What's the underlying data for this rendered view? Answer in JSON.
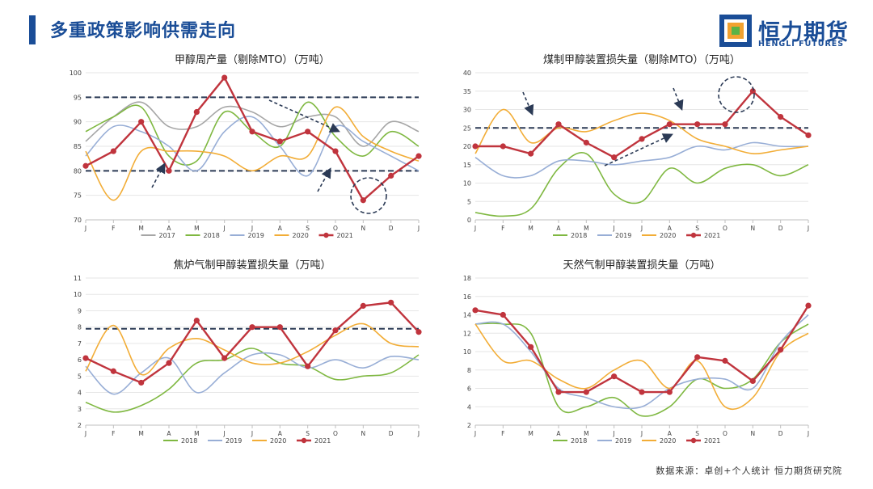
{
  "header": {
    "title": "多重政策影响供需走向"
  },
  "logo": {
    "name_cn": "恒力期货",
    "name_en": "HENGLI FUTURES"
  },
  "source": "数据来源：卓创+个人统计  恒力期货研究院",
  "colors": {
    "2017": "#a6a6a6",
    "2018": "#7fb841",
    "2019": "#98aed6",
    "2020": "#f2ad37",
    "2021": "#c0343d",
    "accent": "#1a4d97"
  },
  "chart_data": [
    {
      "type": "line",
      "title": "甲醇周产量（剔除MTO）（万吨）",
      "categories": [
        "J",
        "F",
        "M",
        "A",
        "M",
        "J",
        "J",
        "A",
        "S",
        "O",
        "N",
        "D",
        "J"
      ],
      "ylim": [
        70,
        100
      ],
      "yticks": [
        70,
        75,
        80,
        85,
        90,
        95,
        100
      ],
      "reference_lines": [
        95,
        80
      ],
      "series": [
        {
          "name": "2017",
          "values": [
            86,
            91,
            94,
            89,
            89,
            93,
            92,
            89,
            91,
            91,
            85,
            90,
            88
          ]
        },
        {
          "name": "2018",
          "values": [
            88,
            91,
            93,
            83,
            82,
            92,
            88,
            85,
            94,
            87,
            83,
            88,
            85
          ]
        },
        {
          "name": "2019",
          "values": [
            83,
            89,
            88,
            85,
            80,
            88,
            91,
            85,
            79,
            89,
            86,
            83,
            80
          ]
        },
        {
          "name": "2020",
          "values": [
            84,
            74,
            84,
            84,
            84,
            83,
            80,
            83,
            83,
            93,
            87,
            84,
            82
          ]
        },
        {
          "name": "2021",
          "values": [
            81,
            84,
            90,
            80,
            92,
            99,
            88,
            86,
            88,
            84,
            74,
            79,
            83
          ]
        }
      ]
    },
    {
      "type": "line",
      "title": "煤制甲醇装置损失量（剔除MTO）（万吨）",
      "categories": [
        "J",
        "F",
        "M",
        "A",
        "M",
        "J",
        "J",
        "A",
        "S",
        "O",
        "N",
        "D",
        "J"
      ],
      "ylim": [
        0,
        40
      ],
      "yticks": [
        0,
        5,
        10,
        15,
        20,
        25,
        30,
        35,
        40
      ],
      "reference_lines": [
        25
      ],
      "series": [
        {
          "name": "2018",
          "values": [
            2,
            1,
            3,
            14,
            18,
            7,
            5,
            14,
            10,
            14,
            15,
            12,
            15
          ]
        },
        {
          "name": "2019",
          "values": [
            17,
            12,
            12,
            16,
            16,
            15,
            16,
            17,
            20,
            19,
            21,
            20,
            20
          ]
        },
        {
          "name": "2020",
          "values": [
            18,
            30,
            21,
            25,
            24,
            27,
            29,
            27,
            22,
            20,
            18,
            19,
            20
          ]
        },
        {
          "name": "2021",
          "values": [
            20,
            20,
            18,
            26,
            21,
            17,
            22,
            26,
            26,
            26,
            35,
            28,
            23
          ]
        }
      ]
    },
    {
      "type": "line",
      "title": "焦炉气制甲醇装置损失量（万吨）",
      "categories": [
        "J",
        "F",
        "M",
        "A",
        "M",
        "J",
        "J",
        "A",
        "S",
        "O",
        "N",
        "D",
        "J"
      ],
      "ylim": [
        2,
        11
      ],
      "yticks": [
        2,
        3,
        4,
        5,
        6,
        7,
        8,
        9,
        10,
        11
      ],
      "reference_lines": [
        7.9
      ],
      "series": [
        {
          "name": "2018",
          "values": [
            3.4,
            2.8,
            3.2,
            4.2,
            5.8,
            6.0,
            6.7,
            5.8,
            5.6,
            4.8,
            5.0,
            5.2,
            6.3
          ]
        },
        {
          "name": "2019",
          "values": [
            5.6,
            3.9,
            5.2,
            6.1,
            4.0,
            5.2,
            6.3,
            6.3,
            5.5,
            6.0,
            5.5,
            6.2,
            6.0
          ]
        },
        {
          "name": "2020",
          "values": [
            5.3,
            8.1,
            5.1,
            6.7,
            7.3,
            6.6,
            5.8,
            5.8,
            6.5,
            7.5,
            8.2,
            7.0,
            6.8
          ]
        },
        {
          "name": "2021",
          "values": [
            6.1,
            5.3,
            4.6,
            5.8,
            8.4,
            6.1,
            8.0,
            8.0,
            5.6,
            7.8,
            9.3,
            9.5,
            7.7
          ]
        }
      ]
    },
    {
      "type": "line",
      "title": "天然气制甲醇装置损失量（万吨）",
      "categories": [
        "J",
        "F",
        "M",
        "A",
        "M",
        "J",
        "J",
        "A",
        "S",
        "O",
        "N",
        "D",
        "J"
      ],
      "ylim": [
        2,
        18
      ],
      "yticks": [
        2,
        4,
        6,
        8,
        10,
        12,
        14,
        16,
        18
      ],
      "reference_lines": [],
      "series": [
        {
          "name": "2018",
          "values": [
            13,
            13,
            12,
            4,
            4,
            5,
            3,
            4,
            7,
            6,
            7,
            11,
            13
          ]
        },
        {
          "name": "2019",
          "values": [
            13,
            13,
            10,
            6,
            5,
            4,
            4,
            6,
            7,
            7,
            6,
            11,
            14
          ]
        },
        {
          "name": "2020",
          "values": [
            13,
            9,
            9,
            7,
            6,
            8,
            9,
            6,
            9,
            4,
            5,
            10,
            12
          ]
        },
        {
          "name": "2021",
          "values": [
            14.5,
            14,
            10.5,
            5.6,
            5.6,
            7.3,
            5.6,
            5.6,
            9.4,
            9.0,
            6.8,
            10.2,
            15
          ]
        }
      ]
    }
  ]
}
